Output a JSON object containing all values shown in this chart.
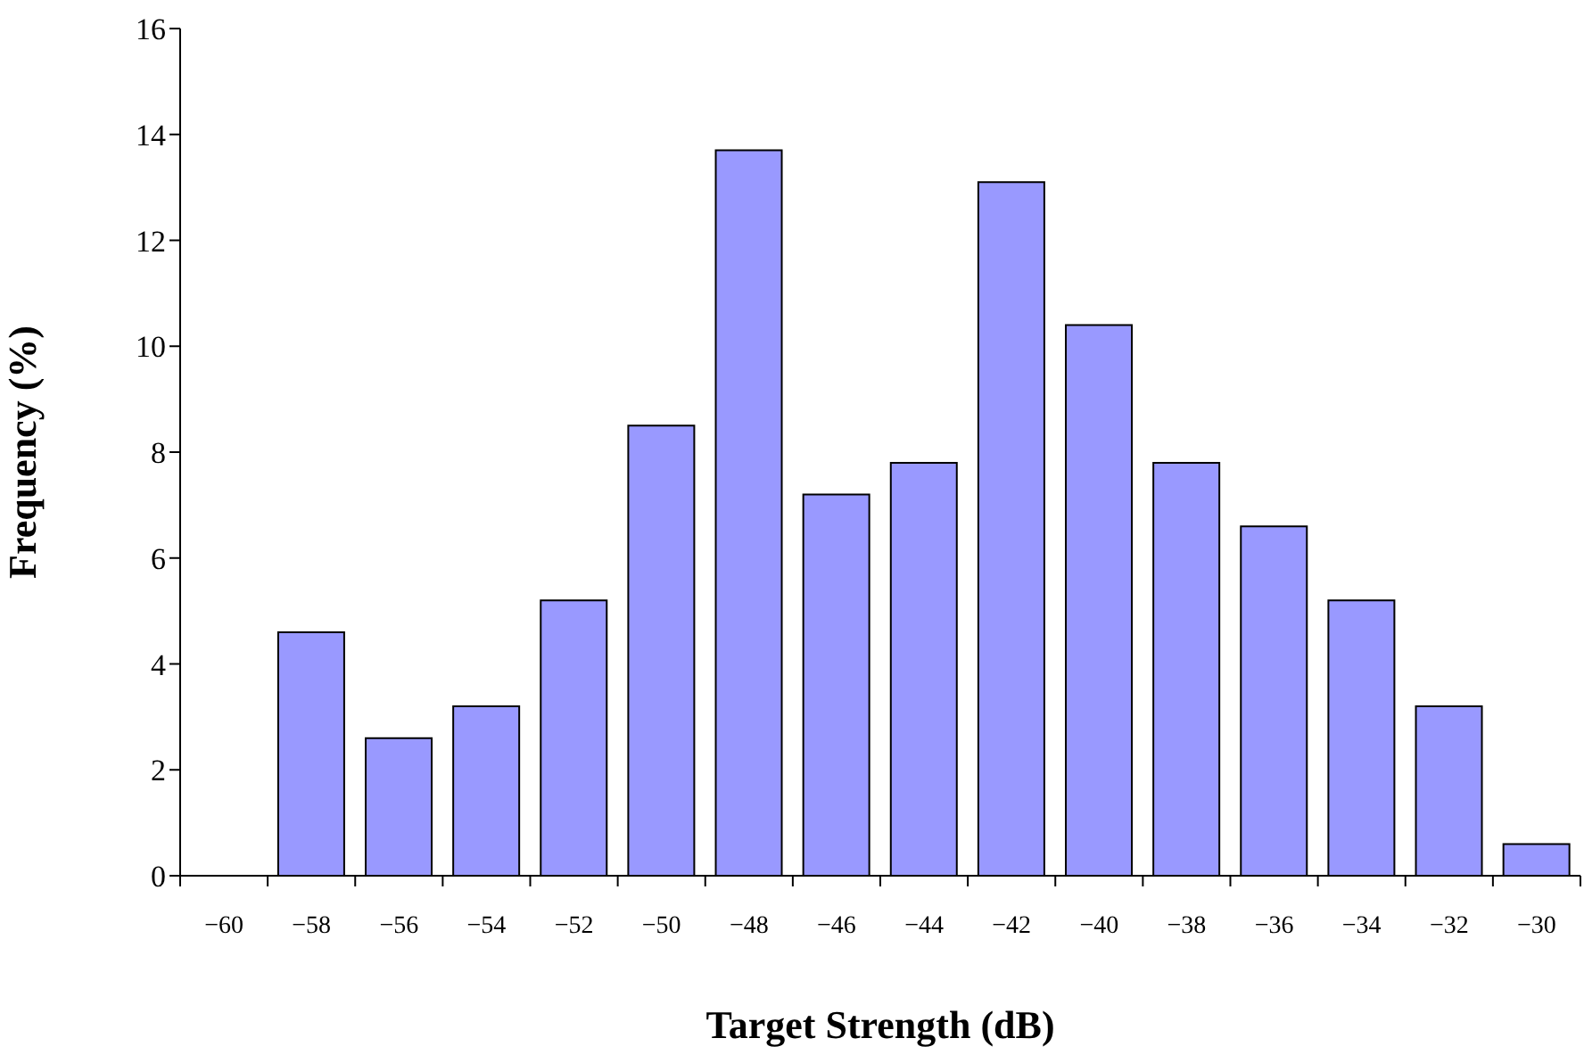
{
  "chart_data": {
    "type": "bar",
    "xlabel": "Target Strength (dB)",
    "ylabel": "Frequency (%)",
    "categories": [
      "−60",
      "−58",
      "−56",
      "−54",
      "−52",
      "−50",
      "−48",
      "−46",
      "−44",
      "−42",
      "−40",
      "−38",
      "−36",
      "−34",
      "−32",
      "−30"
    ],
    "values": [
      0,
      4.6,
      2.6,
      3.2,
      5.2,
      8.5,
      13.7,
      7.2,
      7.8,
      13.1,
      10.4,
      7.8,
      6.6,
      5.2,
      3.2,
      0.6
    ],
    "color": "#9999ff",
    "ylim": [
      0,
      16
    ],
    "yticks": [
      0,
      2,
      4,
      6,
      8,
      10,
      12,
      14,
      16
    ],
    "grid": false,
    "legend": false
  }
}
